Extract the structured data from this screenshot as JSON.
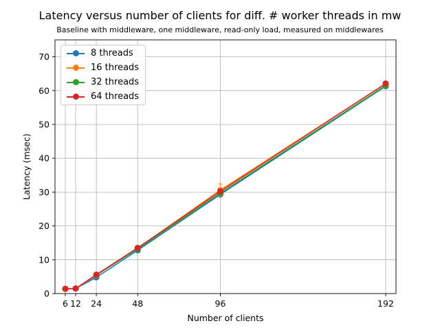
{
  "chart_data": {
    "type": "line",
    "title": "Latency versus number of clients for diff. # worker threads in mw",
    "subtitle": "Baseline with middleware, one middleware, read-only load, measured on middlewares",
    "xlabel": "Number of clients",
    "ylabel": "Latency (msec)",
    "x": [
      6,
      12,
      24,
      48,
      96,
      192
    ],
    "x_ticks": [
      6,
      12,
      24,
      48,
      96,
      192
    ],
    "xlim": [
      0,
      198
    ],
    "ylim": [
      0,
      75
    ],
    "y_ticks": [
      0,
      10,
      20,
      30,
      40,
      50,
      60,
      70
    ],
    "grid": true,
    "legend_position": "top-left",
    "error_bars": true,
    "series": [
      {
        "name": "8 threads",
        "color": "#1f77b4",
        "values": [
          1.4,
          1.5,
          4.8,
          12.8,
          29.3,
          61.3
        ],
        "errors": [
          0.2,
          0.2,
          0.3,
          0.4,
          0.6,
          0.5
        ]
      },
      {
        "name": "16 threads",
        "color": "#ff7f0e",
        "values": [
          1.4,
          1.5,
          5.4,
          13.4,
          30.6,
          62.0
        ],
        "errors": [
          0.2,
          0.2,
          0.3,
          0.4,
          1.8,
          0.5
        ]
      },
      {
        "name": "32 threads",
        "color": "#2ca02c",
        "values": [
          1.4,
          1.5,
          5.5,
          13.2,
          29.7,
          61.5
        ],
        "errors": [
          0.2,
          0.2,
          0.3,
          0.4,
          0.6,
          0.5
        ]
      },
      {
        "name": "64 threads",
        "color": "#d62728",
        "values": [
          1.4,
          1.5,
          5.6,
          13.5,
          30.2,
          62.1
        ],
        "errors": [
          0.2,
          0.2,
          0.3,
          0.4,
          0.6,
          0.5
        ]
      }
    ]
  }
}
